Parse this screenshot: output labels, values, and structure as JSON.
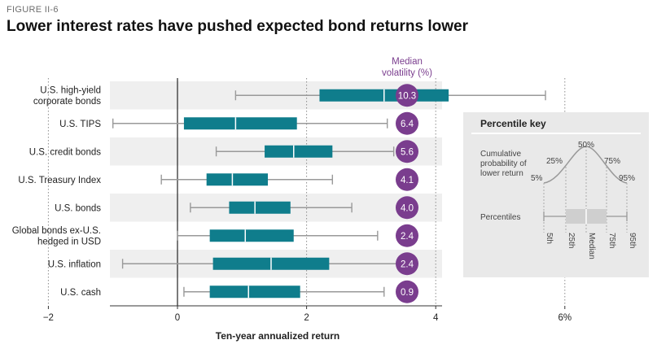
{
  "figure_label": "FIGURE II-6",
  "title": "Lower interest rates have pushed expected bond returns lower",
  "colors": {
    "box": "#0f7d8c",
    "whisker": "#999999",
    "volatility_circle": "#7a3d8e",
    "median_header": "#7a3d8e",
    "band": "#efefef",
    "key_panel": "#e9e9e9",
    "key_box": "#cfcfcf"
  },
  "chart_data": {
    "type": "box",
    "xlabel": "Ten-year annualized return",
    "xlim": [
      -2,
      8.2
    ],
    "x_ticks": [
      -2,
      0,
      2,
      4,
      6
    ],
    "x_tick_labels": [
      "−2",
      "0",
      "2",
      "4",
      "6%"
    ],
    "reference_line_x": 0,
    "dotted_gridlines": [
      -2,
      2,
      4,
      6
    ],
    "volatility_header": "Median volatility (%)",
    "categories": [
      "U.S. high-yield corporate bonds",
      "U.S. TIPS",
      "U.S. credit bonds",
      "U.S. Treasury Index",
      "U.S. bonds",
      "Global bonds ex-U.S. hedged in USD",
      "U.S. inflation",
      "U.S. cash"
    ],
    "label_lines": [
      [
        "U.S. high-yield",
        "corporate bonds"
      ],
      [
        "U.S. TIPS"
      ],
      [
        "U.S. credit bonds"
      ],
      [
        "U.S. Treasury Index"
      ],
      [
        "U.S. bonds"
      ],
      [
        "Global bonds ex-U.S.",
        "hedged in USD"
      ],
      [
        "U.S. inflation"
      ],
      [
        "U.S. cash"
      ]
    ],
    "p5": [
      0.9,
      -1.0,
      0.6,
      -0.25,
      0.2,
      0.0,
      -0.85,
      0.1
    ],
    "p25": [
      2.2,
      0.1,
      1.35,
      0.45,
      0.8,
      0.5,
      0.55,
      0.5
    ],
    "median": [
      3.2,
      0.9,
      1.8,
      0.85,
      1.2,
      1.05,
      1.45,
      1.1
    ],
    "p75": [
      4.2,
      1.85,
      2.4,
      1.4,
      1.75,
      1.8,
      2.35,
      1.9
    ],
    "p95": [
      5.7,
      3.25,
      3.35,
      2.4,
      2.7,
      3.1,
      3.7,
      3.2
    ],
    "median_volatility": [
      "10.3",
      "6.4",
      "5.6",
      "4.1",
      "4.0",
      "2.4",
      "2.4",
      "0.9"
    ]
  },
  "key": {
    "title": "Percentile key",
    "cumulative_label": [
      "Cumulative",
      "probability of",
      "lower return"
    ],
    "curve_labels": [
      "5%",
      "25%",
      "50%",
      "75%",
      "95%"
    ],
    "percentiles_label": "Percentiles",
    "axis_labels": [
      "5th",
      "25th",
      "Median",
      "75th",
      "95th"
    ]
  }
}
